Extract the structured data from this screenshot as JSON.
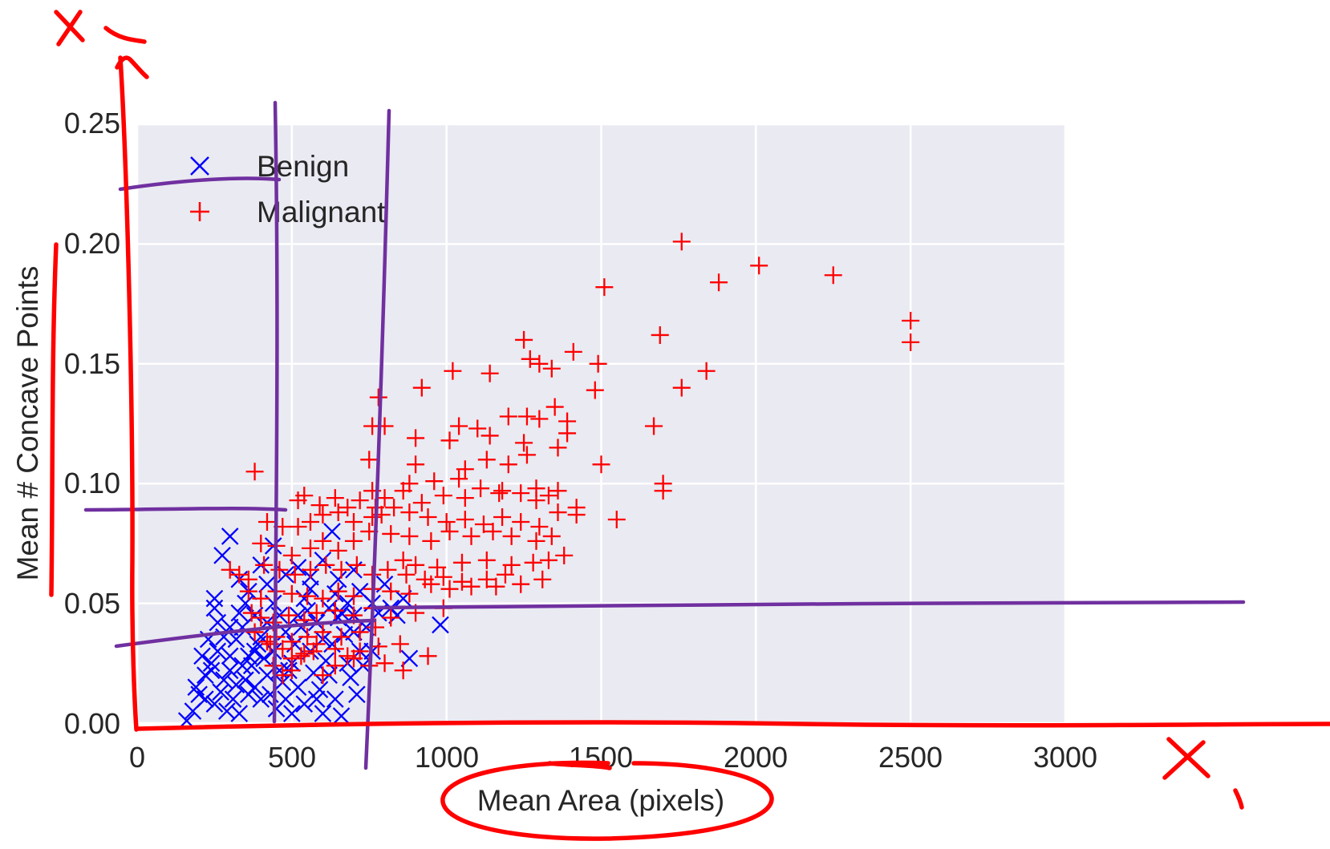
{
  "chart_data": {
    "type": "scatter",
    "title": "",
    "xlabel": "Mean Area (pixels)",
    "ylabel": "Mean # Concave Points",
    "xlim": [
      0,
      3000
    ],
    "ylim": [
      0,
      0.25
    ],
    "xticks": [
      "0",
      "500",
      "1000",
      "1500",
      "2000",
      "2500",
      "3000"
    ],
    "yticks": [
      "0.00",
      "0.05",
      "0.10",
      "0.15",
      "0.20",
      "0.25"
    ],
    "grid": true,
    "legend_position": "top-left",
    "colors": {
      "benign": "#0000ff",
      "malignant": "#ff0000",
      "plot_bg": "#eaeaf2",
      "annotation_red": "#ff0000",
      "annotation_purple": "#7030a0"
    },
    "series": [
      {
        "name": "Benign",
        "marker": "x",
        "color": "#0000ff",
        "points": [
          [
            300,
            0.078
          ],
          [
            275,
            0.07
          ],
          [
            440,
            0.074
          ],
          [
            630,
            0.08
          ],
          [
            980,
            0.041
          ],
          [
            880,
            0.027
          ],
          [
            250,
            0.052
          ],
          [
            250,
            0.048
          ],
          [
            330,
            0.06
          ],
          [
            360,
            0.055
          ],
          [
            400,
            0.066
          ],
          [
            420,
            0.058
          ],
          [
            480,
            0.062
          ],
          [
            520,
            0.065
          ],
          [
            560,
            0.061
          ],
          [
            600,
            0.068
          ],
          [
            650,
            0.06
          ],
          [
            700,
            0.064
          ],
          [
            720,
            0.055
          ],
          [
            760,
            0.05
          ],
          [
            780,
            0.046
          ],
          [
            820,
            0.048
          ],
          [
            840,
            0.045
          ],
          [
            860,
            0.052
          ],
          [
            800,
            0.058
          ],
          [
            230,
            0.035
          ],
          [
            210,
            0.028
          ],
          [
            190,
            0.015
          ],
          [
            160,
            0.001
          ],
          [
            180,
            0.005
          ],
          [
            200,
            0.012
          ],
          [
            220,
            0.02
          ],
          [
            240,
            0.025
          ],
          [
            260,
            0.03
          ],
          [
            280,
            0.018
          ],
          [
            300,
            0.022
          ],
          [
            320,
            0.035
          ],
          [
            340,
            0.04
          ],
          [
            360,
            0.028
          ],
          [
            380,
            0.015
          ],
          [
            400,
            0.01
          ],
          [
            420,
            0.02
          ],
          [
            440,
            0.03
          ],
          [
            460,
            0.045
          ],
          [
            480,
            0.038
          ],
          [
            500,
            0.025
          ],
          [
            520,
            0.015
          ],
          [
            540,
            0.008
          ],
          [
            560,
            0.03
          ],
          [
            580,
            0.042
          ],
          [
            600,
            0.035
          ],
          [
            620,
            0.02
          ],
          [
            640,
            0.01
          ],
          [
            660,
            0.003
          ],
          [
            680,
            0.025
          ],
          [
            700,
            0.038
          ],
          [
            720,
            0.03
          ],
          [
            740,
            0.04
          ],
          [
            760,
            0.03
          ],
          [
            250,
            0.008
          ],
          [
            270,
            0.013
          ],
          [
            290,
            0.005
          ],
          [
            310,
            0.01
          ],
          [
            330,
            0.004
          ],
          [
            350,
            0.018
          ],
          [
            370,
            0.024
          ],
          [
            390,
            0.033
          ],
          [
            410,
            0.027
          ],
          [
            430,
            0.012
          ],
          [
            450,
            0.006
          ],
          [
            470,
            0.017
          ],
          [
            490,
            0.022
          ],
          [
            510,
            0.033
          ],
          [
            530,
            0.04
          ],
          [
            550,
            0.047
          ],
          [
            570,
            0.021
          ],
          [
            590,
            0.014
          ],
          [
            610,
            0.026
          ],
          [
            630,
            0.033
          ],
          [
            650,
            0.044
          ],
          [
            670,
            0.037
          ],
          [
            690,
            0.019
          ],
          [
            710,
            0.012
          ],
          [
            730,
            0.024
          ],
          [
            300,
            0.028
          ],
          [
            320,
            0.016
          ],
          [
            340,
            0.024
          ],
          [
            360,
            0.012
          ],
          [
            380,
            0.03
          ],
          [
            400,
            0.036
          ],
          [
            420,
            0.042
          ],
          [
            440,
            0.05
          ],
          [
            460,
            0.022
          ],
          [
            480,
            0.01
          ],
          [
            500,
            0.004
          ],
          [
            520,
            0.045
          ],
          [
            540,
            0.052
          ],
          [
            560,
            0.056
          ],
          [
            580,
            0.01
          ],
          [
            600,
            0.004
          ],
          [
            620,
            0.048
          ],
          [
            640,
            0.054
          ],
          [
            660,
            0.046
          ],
          [
            680,
            0.05
          ],
          [
            700,
            0.045
          ],
          [
            380,
            0.045
          ],
          [
            350,
            0.05
          ],
          [
            330,
            0.046
          ],
          [
            300,
            0.04
          ],
          [
            280,
            0.036
          ],
          [
            260,
            0.042
          ],
          [
            240,
            0.022
          ],
          [
            220,
            0.01
          ]
        ]
      },
      {
        "name": "Malignant",
        "marker": "+",
        "color": "#ff0000",
        "points": [
          [
            1760,
            0.201
          ],
          [
            2010,
            0.191
          ],
          [
            2250,
            0.187
          ],
          [
            1880,
            0.184
          ],
          [
            1510,
            0.182
          ],
          [
            2500,
            0.168
          ],
          [
            2500,
            0.159
          ],
          [
            1690,
            0.162
          ],
          [
            1250,
            0.16
          ],
          [
            1410,
            0.155
          ],
          [
            1270,
            0.152
          ],
          [
            1490,
            0.15
          ],
          [
            1300,
            0.15
          ],
          [
            1340,
            0.148
          ],
          [
            1020,
            0.147
          ],
          [
            1140,
            0.146
          ],
          [
            1840,
            0.147
          ],
          [
            1760,
            0.14
          ],
          [
            1480,
            0.139
          ],
          [
            920,
            0.14
          ],
          [
            780,
            0.136
          ],
          [
            1350,
            0.132
          ],
          [
            1200,
            0.128
          ],
          [
            1260,
            0.128
          ],
          [
            1300,
            0.127
          ],
          [
            1390,
            0.126
          ],
          [
            1040,
            0.124
          ],
          [
            1100,
            0.123
          ],
          [
            760,
            0.124
          ],
          [
            800,
            0.124
          ],
          [
            1670,
            0.124
          ],
          [
            1260,
            0.112
          ],
          [
            1390,
            0.121
          ],
          [
            1140,
            0.12
          ],
          [
            1250,
            0.117
          ],
          [
            1010,
            0.118
          ],
          [
            900,
            0.119
          ],
          [
            1360,
            0.115
          ],
          [
            1130,
            0.11
          ],
          [
            1200,
            0.108
          ],
          [
            1500,
            0.108
          ],
          [
            750,
            0.11
          ],
          [
            900,
            0.108
          ],
          [
            1060,
            0.106
          ],
          [
            1700,
            0.1
          ],
          [
            1700,
            0.097
          ],
          [
            380,
            0.105
          ],
          [
            880,
            0.1
          ],
          [
            960,
            0.101
          ],
          [
            1040,
            0.102
          ],
          [
            1110,
            0.098
          ],
          [
            1180,
            0.097
          ],
          [
            1240,
            0.096
          ],
          [
            1290,
            0.098
          ],
          [
            1330,
            0.095
          ],
          [
            1360,
            0.097
          ],
          [
            1290,
            0.093
          ],
          [
            1170,
            0.096
          ],
          [
            1060,
            0.094
          ],
          [
            990,
            0.095
          ],
          [
            920,
            0.092
          ],
          [
            860,
            0.097
          ],
          [
            760,
            0.097
          ],
          [
            800,
            0.094
          ],
          [
            830,
            0.09
          ],
          [
            640,
            0.094
          ],
          [
            540,
            0.095
          ],
          [
            520,
            0.093
          ],
          [
            590,
            0.091
          ],
          [
            680,
            0.09
          ],
          [
            720,
            0.093
          ],
          [
            770,
            0.09
          ],
          [
            790,
            0.087
          ],
          [
            760,
            0.086
          ],
          [
            700,
            0.084
          ],
          [
            650,
            0.088
          ],
          [
            600,
            0.087
          ],
          [
            560,
            0.084
          ],
          [
            520,
            0.082
          ],
          [
            470,
            0.082
          ],
          [
            420,
            0.084
          ],
          [
            880,
            0.088
          ],
          [
            940,
            0.086
          ],
          [
            1000,
            0.084
          ],
          [
            1060,
            0.085
          ],
          [
            1120,
            0.083
          ],
          [
            1180,
            0.086
          ],
          [
            1240,
            0.084
          ],
          [
            1300,
            0.082
          ],
          [
            1360,
            0.088
          ],
          [
            1420,
            0.09
          ],
          [
            1420,
            0.087
          ],
          [
            1550,
            0.085
          ],
          [
            1290,
            0.076
          ],
          [
            1340,
            0.078
          ],
          [
            1210,
            0.078
          ],
          [
            1150,
            0.08
          ],
          [
            1080,
            0.078
          ],
          [
            1010,
            0.08
          ],
          [
            950,
            0.076
          ],
          [
            880,
            0.078
          ],
          [
            820,
            0.079
          ],
          [
            750,
            0.08
          ],
          [
            700,
            0.076
          ],
          [
            650,
            0.072
          ],
          [
            600,
            0.076
          ],
          [
            560,
            0.073
          ],
          [
            500,
            0.07
          ],
          [
            450,
            0.074
          ],
          [
            400,
            0.075
          ],
          [
            860,
            0.068
          ],
          [
            900,
            0.066
          ],
          [
            970,
            0.065
          ],
          [
            1050,
            0.067
          ],
          [
            1130,
            0.068
          ],
          [
            1210,
            0.066
          ],
          [
            1280,
            0.067
          ],
          [
            1330,
            0.068
          ],
          [
            1380,
            0.07
          ],
          [
            1190,
            0.062
          ],
          [
            1130,
            0.06
          ],
          [
            1050,
            0.059
          ],
          [
            990,
            0.061
          ],
          [
            930,
            0.06
          ],
          [
            870,
            0.062
          ],
          [
            810,
            0.064
          ],
          [
            760,
            0.062
          ],
          [
            710,
            0.066
          ],
          [
            660,
            0.064
          ],
          [
            610,
            0.066
          ],
          [
            560,
            0.064
          ],
          [
            510,
            0.062
          ],
          [
            460,
            0.064
          ],
          [
            410,
            0.066
          ],
          [
            360,
            0.06
          ],
          [
            330,
            0.062
          ],
          [
            300,
            0.064
          ],
          [
            1310,
            0.06
          ],
          [
            1240,
            0.058
          ],
          [
            1160,
            0.057
          ],
          [
            1080,
            0.057
          ],
          [
            1010,
            0.056
          ],
          [
            950,
            0.058
          ],
          [
            880,
            0.054
          ],
          [
            820,
            0.055
          ],
          [
            760,
            0.056
          ],
          [
            700,
            0.053
          ],
          [
            650,
            0.055
          ],
          [
            600,
            0.052
          ],
          [
            550,
            0.053
          ],
          [
            500,
            0.054
          ],
          [
            450,
            0.055
          ],
          [
            400,
            0.052
          ],
          [
            360,
            0.055
          ],
          [
            990,
            0.048
          ],
          [
            900,
            0.046
          ],
          [
            820,
            0.044
          ],
          [
            760,
            0.048
          ],
          [
            700,
            0.045
          ],
          [
            640,
            0.047
          ],
          [
            580,
            0.046
          ],
          [
            540,
            0.043
          ],
          [
            490,
            0.045
          ],
          [
            440,
            0.042
          ],
          [
            400,
            0.044
          ],
          [
            370,
            0.046
          ],
          [
            770,
            0.04
          ],
          [
            720,
            0.038
          ],
          [
            660,
            0.036
          ],
          [
            600,
            0.038
          ],
          [
            550,
            0.036
          ],
          [
            500,
            0.034
          ],
          [
            450,
            0.036
          ],
          [
            420,
            0.034
          ],
          [
            380,
            0.038
          ],
          [
            850,
            0.033
          ],
          [
            780,
            0.032
          ],
          [
            720,
            0.03
          ],
          [
            680,
            0.028
          ],
          [
            640,
            0.031
          ],
          [
            580,
            0.033
          ],
          [
            540,
            0.029
          ],
          [
            500,
            0.027
          ],
          [
            470,
            0.031
          ],
          [
            430,
            0.033
          ],
          [
            940,
            0.028
          ],
          [
            860,
            0.022
          ],
          [
            800,
            0.025
          ],
          [
            750,
            0.024
          ],
          [
            700,
            0.027
          ],
          [
            640,
            0.024
          ],
          [
            600,
            0.02
          ],
          [
            570,
            0.03
          ],
          [
            530,
            0.028
          ],
          [
            500,
            0.022
          ],
          [
            470,
            0.02
          ],
          [
            440,
            0.024
          ]
        ]
      }
    ]
  }
}
